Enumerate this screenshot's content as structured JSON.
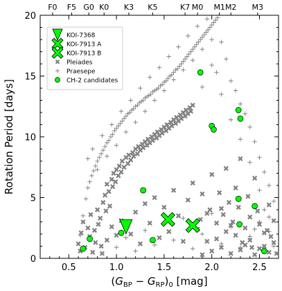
{
  "chart_data": {
    "type": "scatter",
    "xlabel": "(G_BP − G_RP)_0 [mag]",
    "ylabel": "Rotation Period [days]",
    "xlim": [
      0.2,
      2.7
    ],
    "ylim": [
      0,
      20
    ],
    "x_ticks": [
      0.5,
      1.0,
      1.5,
      2.0,
      2.5
    ],
    "y_ticks": [
      0,
      5,
      10,
      15,
      20
    ],
    "spectral_types": [
      {
        "label": "F0",
        "x": 0.33
      },
      {
        "label": "F5",
        "x": 0.53
      },
      {
        "label": "G0",
        "x": 0.71
      },
      {
        "label": "K0",
        "x": 0.87
      },
      {
        "label": "K3",
        "x": 1.13
      },
      {
        "label": "K5",
        "x": 1.38
      },
      {
        "label": "K7",
        "x": 1.72
      },
      {
        "label": "M0",
        "x": 1.85
      },
      {
        "label": "M1",
        "x": 2.08
      },
      {
        "label": "M2",
        "x": 2.2
      },
      {
        "label": "M3",
        "x": 2.48
      }
    ],
    "legend_placement": "top-left",
    "series": [
      {
        "name": "KOI-7368",
        "marker": "triangle",
        "color": "#00ff00",
        "points": [
          [
            1.1,
            2.6
          ]
        ]
      },
      {
        "name": "KOI-7913 A",
        "marker": "x-big",
        "color": "#00ff00",
        "points": [
          [
            1.54,
            3.2
          ]
        ]
      },
      {
        "name": "KOI-7913 B",
        "marker": "x-big",
        "color": "#00ff00",
        "points": [
          [
            1.8,
            2.7
          ]
        ]
      },
      {
        "name": "Pleiades",
        "marker": "x",
        "color": "#808080",
        "points": [
          [
            0.6,
            1.2
          ],
          [
            0.62,
            0.6
          ],
          [
            0.63,
            2.1
          ],
          [
            0.65,
            3.0
          ],
          [
            0.67,
            0.9
          ],
          [
            0.7,
            2.5
          ],
          [
            0.72,
            1.8
          ],
          [
            0.73,
            3.6
          ],
          [
            0.75,
            0.5
          ],
          [
            0.77,
            2.3
          ],
          [
            0.78,
            1.3
          ],
          [
            0.8,
            4.0
          ],
          [
            0.81,
            2.8
          ],
          [
            0.83,
            3.3
          ],
          [
            0.84,
            1.0
          ],
          [
            0.86,
            4.6
          ],
          [
            0.88,
            5.2
          ],
          [
            0.89,
            3.9
          ],
          [
            0.9,
            6.1
          ],
          [
            0.92,
            5.5
          ],
          [
            0.93,
            4.3
          ],
          [
            0.95,
            6.5
          ],
          [
            0.96,
            5.9
          ],
          [
            0.97,
            7.0
          ],
          [
            0.99,
            6.3
          ],
          [
            1.0,
            7.3
          ],
          [
            1.02,
            6.8
          ],
          [
            1.03,
            7.6
          ],
          [
            1.05,
            7.1
          ],
          [
            1.06,
            8.0
          ],
          [
            1.08,
            7.5
          ],
          [
            1.1,
            8.3
          ],
          [
            1.12,
            7.8
          ],
          [
            1.13,
            8.5
          ],
          [
            1.15,
            8.1
          ],
          [
            1.17,
            8.7
          ],
          [
            1.18,
            8.4
          ],
          [
            1.2,
            9.0
          ],
          [
            1.22,
            8.6
          ],
          [
            1.23,
            9.2
          ],
          [
            1.25,
            8.9
          ],
          [
            1.27,
            9.4
          ],
          [
            1.28,
            9.1
          ],
          [
            1.3,
            9.6
          ],
          [
            1.32,
            9.3
          ],
          [
            1.33,
            9.8
          ],
          [
            1.35,
            9.5
          ],
          [
            1.37,
            10.0
          ],
          [
            1.38,
            9.7
          ],
          [
            1.4,
            10.2
          ],
          [
            1.42,
            9.9
          ],
          [
            1.43,
            10.4
          ],
          [
            1.45,
            10.1
          ],
          [
            1.47,
            10.6
          ],
          [
            1.48,
            10.3
          ],
          [
            1.5,
            10.8
          ],
          [
            1.52,
            10.5
          ],
          [
            1.53,
            11.0
          ],
          [
            1.55,
            10.7
          ],
          [
            1.57,
            11.2
          ],
          [
            1.58,
            10.9
          ],
          [
            1.6,
            11.4
          ],
          [
            1.62,
            11.1
          ],
          [
            1.63,
            11.6
          ],
          [
            1.65,
            11.3
          ],
          [
            1.67,
            11.8
          ],
          [
            1.68,
            11.5
          ],
          [
            1.7,
            12.0
          ],
          [
            1.72,
            11.7
          ],
          [
            1.73,
            12.2
          ],
          [
            1.75,
            11.9
          ],
          [
            1.77,
            12.4
          ],
          [
            1.78,
            12.1
          ],
          [
            1.8,
            12.6
          ],
          [
            0.85,
            0.4
          ],
          [
            0.9,
            1.5
          ],
          [
            0.95,
            2.6
          ],
          [
            1.0,
            1.9
          ],
          [
            1.05,
            3.1
          ],
          [
            1.15,
            2.0
          ],
          [
            1.2,
            3.8
          ],
          [
            1.25,
            1.2
          ],
          [
            1.3,
            4.5
          ],
          [
            1.35,
            2.9
          ],
          [
            1.4,
            5.0
          ],
          [
            1.45,
            1.7
          ],
          [
            1.5,
            4.2
          ],
          [
            1.55,
            2.2
          ],
          [
            1.6,
            5.6
          ],
          [
            1.65,
            3.5
          ],
          [
            1.7,
            1.4
          ],
          [
            1.75,
            4.8
          ],
          [
            1.8,
            6.2
          ],
          [
            1.85,
            2.4
          ],
          [
            1.9,
            5.3
          ],
          [
            1.95,
            3.7
          ],
          [
            2.0,
            6.9
          ],
          [
            2.05,
            1.6
          ],
          [
            2.1,
            4.1
          ],
          [
            2.15,
            7.4
          ],
          [
            2.2,
            2.7
          ],
          [
            2.25,
            5.8
          ],
          [
            2.3,
            8.2
          ],
          [
            2.35,
            1.1
          ],
          [
            2.4,
            3.4
          ],
          [
            2.45,
            6.6
          ],
          [
            2.5,
            0.8
          ],
          [
            2.55,
            2.1
          ],
          [
            2.6,
            4.4
          ],
          [
            2.65,
            1.3
          ],
          [
            2.2,
            0.4
          ],
          [
            2.25,
            1.9
          ],
          [
            2.3,
            0.7
          ],
          [
            2.35,
            2.5
          ],
          [
            2.4,
            1.5
          ],
          [
            2.45,
            0.3
          ],
          [
            2.5,
            2.8
          ],
          [
            2.55,
            1.0
          ],
          [
            2.6,
            0.5
          ],
          [
            2.65,
            3.1
          ],
          [
            2.1,
            0.9
          ],
          [
            2.15,
            2.2
          ],
          [
            2.0,
            0.6
          ],
          [
            1.95,
            1.4
          ],
          [
            1.9,
            0.3
          ],
          [
            2.05,
            2.9
          ],
          [
            2.12,
            3.6
          ],
          [
            2.28,
            4.2
          ],
          [
            2.38,
            5.1
          ],
          [
            2.48,
            3.9
          ],
          [
            2.58,
            2.3
          ],
          [
            2.62,
            1.8
          ],
          [
            2.68,
            0.4
          ],
          [
            2.42,
            0.9
          ],
          [
            2.32,
            1.3
          ],
          [
            2.22,
            3.0
          ],
          [
            2.18,
            4.6
          ],
          [
            2.08,
            5.4
          ],
          [
            1.98,
            4.0
          ],
          [
            1.88,
            3.2
          ]
        ]
      },
      {
        "name": "Praesepe",
        "marker": "plus",
        "color": "#808080",
        "points": [
          [
            0.62,
            1.9
          ],
          [
            0.65,
            3.5
          ],
          [
            0.68,
            4.9
          ],
          [
            0.7,
            5.8
          ],
          [
            0.72,
            6.3
          ],
          [
            0.74,
            6.8
          ],
          [
            0.76,
            7.2
          ],
          [
            0.78,
            7.6
          ],
          [
            0.8,
            8.0
          ],
          [
            0.82,
            8.3
          ],
          [
            0.84,
            8.6
          ],
          [
            0.86,
            8.9
          ],
          [
            0.88,
            9.2
          ],
          [
            0.9,
            9.5
          ],
          [
            0.92,
            9.7
          ],
          [
            0.94,
            10.0
          ],
          [
            0.96,
            10.2
          ],
          [
            0.98,
            10.5
          ],
          [
            1.0,
            10.7
          ],
          [
            1.02,
            10.9
          ],
          [
            1.04,
            11.1
          ],
          [
            1.06,
            11.3
          ],
          [
            1.08,
            11.5
          ],
          [
            1.1,
            11.7
          ],
          [
            1.12,
            11.9
          ],
          [
            1.14,
            12.0
          ],
          [
            1.16,
            12.2
          ],
          [
            1.18,
            12.3
          ],
          [
            1.2,
            12.5
          ],
          [
            1.22,
            12.6
          ],
          [
            1.24,
            12.8
          ],
          [
            1.26,
            12.9
          ],
          [
            1.28,
            13.0
          ],
          [
            1.3,
            13.2
          ],
          [
            1.32,
            13.3
          ],
          [
            1.34,
            13.4
          ],
          [
            1.36,
            13.5
          ],
          [
            1.38,
            13.7
          ],
          [
            1.4,
            13.8
          ],
          [
            1.42,
            13.9
          ],
          [
            1.44,
            14.0
          ],
          [
            1.46,
            14.2
          ],
          [
            1.48,
            14.3
          ],
          [
            1.5,
            14.5
          ],
          [
            1.52,
            14.6
          ],
          [
            1.54,
            14.8
          ],
          [
            1.56,
            15.0
          ],
          [
            1.58,
            15.1
          ],
          [
            1.6,
            15.3
          ],
          [
            1.62,
            15.5
          ],
          [
            1.64,
            15.6
          ],
          [
            1.66,
            15.8
          ],
          [
            1.68,
            16.0
          ],
          [
            1.7,
            16.2
          ],
          [
            1.72,
            16.4
          ],
          [
            1.74,
            16.6
          ],
          [
            1.76,
            16.8
          ],
          [
            1.78,
            17.0
          ],
          [
            1.8,
            17.2
          ],
          [
            1.82,
            17.4
          ],
          [
            1.84,
            17.6
          ],
          [
            1.86,
            17.8
          ],
          [
            1.88,
            18.0
          ],
          [
            1.9,
            18.2
          ],
          [
            1.92,
            18.4
          ],
          [
            1.94,
            18.6
          ],
          [
            1.96,
            18.8
          ],
          [
            1.98,
            19.0
          ],
          [
            2.0,
            19.2
          ],
          [
            2.02,
            19.4
          ],
          [
            2.04,
            19.6
          ],
          [
            2.06,
            19.8
          ],
          [
            0.7,
            8.2
          ],
          [
            0.75,
            9.0
          ],
          [
            0.8,
            7.3
          ],
          [
            0.85,
            10.1
          ],
          [
            0.9,
            8.4
          ],
          [
            0.95,
            11.0
          ],
          [
            1.0,
            9.3
          ],
          [
            1.05,
            12.1
          ],
          [
            1.1,
            10.4
          ],
          [
            1.15,
            13.0
          ],
          [
            1.2,
            11.2
          ],
          [
            1.25,
            14.0
          ],
          [
            1.3,
            12.1
          ],
          [
            1.35,
            14.9
          ],
          [
            1.4,
            13.0
          ],
          [
            1.45,
            15.7
          ],
          [
            1.5,
            13.8
          ],
          [
            1.55,
            16.6
          ],
          [
            1.6,
            14.7
          ],
          [
            1.65,
            17.4
          ],
          [
            1.7,
            15.5
          ],
          [
            1.75,
            18.3
          ],
          [
            1.8,
            16.3
          ],
          [
            1.85,
            19.1
          ],
          [
            1.9,
            17.2
          ],
          [
            1.95,
            19.7
          ],
          [
            2.0,
            18.0
          ],
          [
            2.05,
            15.3
          ],
          [
            2.1,
            17.8
          ],
          [
            2.15,
            16.4
          ],
          [
            2.2,
            14.6
          ],
          [
            2.25,
            13.8
          ],
          [
            2.3,
            12.7
          ],
          [
            2.35,
            11.9
          ],
          [
            2.4,
            10.8
          ],
          [
            2.45,
            9.6
          ],
          [
            2.5,
            8.3
          ],
          [
            2.55,
            7.1
          ],
          [
            2.6,
            6.0
          ],
          [
            2.65,
            4.7
          ],
          [
            2.3,
            9.8
          ],
          [
            2.4,
            7.9
          ],
          [
            2.5,
            5.6
          ],
          [
            2.6,
            3.4
          ],
          [
            2.2,
            11.4
          ],
          [
            2.1,
            13.5
          ],
          [
            2.0,
            15.9
          ],
          [
            1.9,
            14.1
          ],
          [
            1.0,
            0.9
          ],
          [
            1.1,
            1.7
          ],
          [
            1.2,
            0.6
          ],
          [
            1.3,
            2.3
          ],
          [
            1.4,
            1.1
          ],
          [
            1.5,
            2.9
          ],
          [
            1.6,
            1.5
          ],
          [
            1.7,
            3.3
          ],
          [
            1.8,
            0.8
          ],
          [
            1.9,
            2.0
          ],
          [
            2.0,
            3.7
          ],
          [
            2.1,
            1.2
          ],
          [
            2.2,
            2.6
          ],
          [
            2.3,
            0.9
          ],
          [
            2.4,
            1.8
          ],
          [
            2.5,
            3.0
          ],
          [
            2.6,
            2.2
          ],
          [
            2.65,
            1.0
          ],
          [
            2.55,
            4.0
          ],
          [
            2.45,
            2.4
          ]
        ]
      },
      {
        "name": "CH-2 candidates",
        "marker": "circle",
        "color": "#00ff00",
        "points": [
          [
            0.65,
            0.8
          ],
          [
            0.72,
            1.6
          ],
          [
            1.05,
            2.1
          ],
          [
            1.28,
            5.6
          ],
          [
            1.38,
            1.5
          ],
          [
            1.88,
            15.3
          ],
          [
            2.0,
            10.9
          ],
          [
            2.02,
            10.6
          ],
          [
            2.28,
            12.2
          ],
          [
            2.3,
            11.5
          ],
          [
            2.28,
            4.9
          ],
          [
            2.29,
            2.8
          ],
          [
            2.45,
            4.3
          ],
          [
            2.55,
            0.6
          ]
        ]
      }
    ]
  }
}
